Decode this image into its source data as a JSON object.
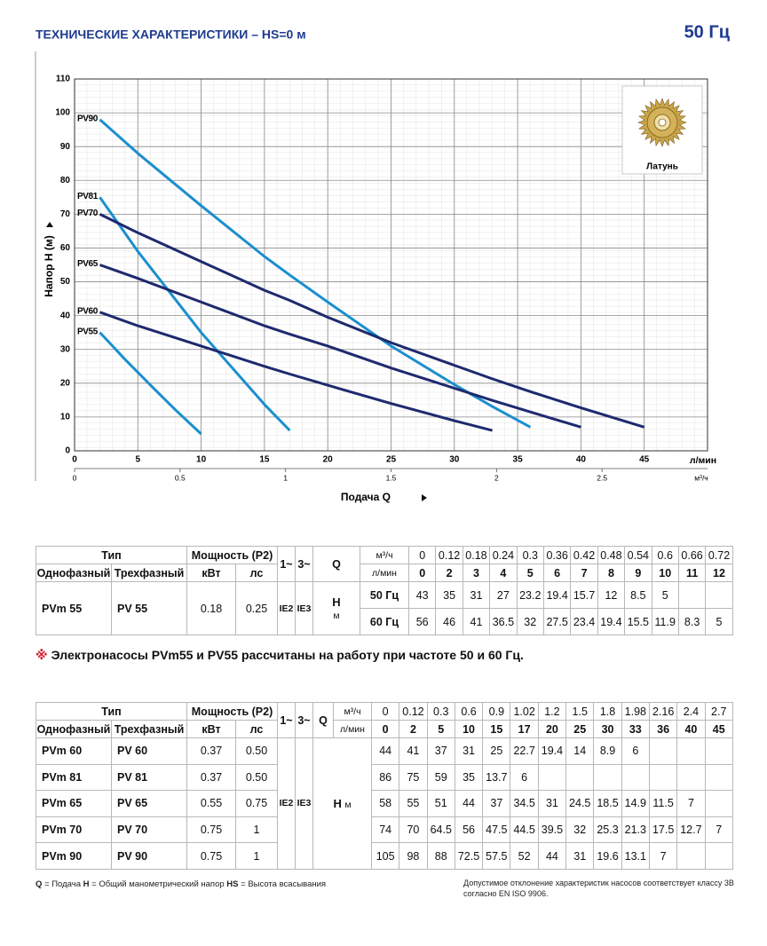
{
  "header": {
    "title": "ТЕХНИЧЕСКИЕ ХАРАКТЕРИСТИКИ – HS=0 м",
    "frequency": "50 Гц"
  },
  "chart_data": {
    "type": "line",
    "y_label": "Напор H (м)",
    "x_label": "Подача Q",
    "x_unit": "л/мин",
    "x2_unit": "м³/ч",
    "image_label": "Латунь",
    "xlim": [
      0,
      50
    ],
    "xticks": [
      0,
      5,
      10,
      15,
      20,
      25,
      30,
      35,
      40,
      45
    ],
    "x2lim": [
      0,
      3
    ],
    "x2ticks": [
      0,
      0.5,
      1,
      1.5,
      2,
      2.5
    ],
    "ylim": [
      0,
      110
    ],
    "yticks": [
      0,
      10,
      20,
      30,
      40,
      50,
      60,
      70,
      80,
      90,
      100,
      110
    ],
    "grid": true,
    "series": [
      {
        "name": "PV90",
        "color": "#1b8fcf",
        "x": [
          2,
          5,
          10,
          15,
          17,
          20,
          25,
          30,
          33,
          36
        ],
        "values": [
          98,
          88,
          72.5,
          57.5,
          52,
          44,
          31,
          19.6,
          13.1,
          7
        ]
      },
      {
        "name": "PV81",
        "color": "#1b8fcf",
        "x": [
          2,
          5,
          10,
          15,
          17
        ],
        "values": [
          75,
          59,
          35,
          13.7,
          6
        ]
      },
      {
        "name": "PV70",
        "color": "#1e2a6e",
        "x": [
          2,
          5,
          10,
          15,
          17,
          20,
          25,
          30,
          33,
          36,
          40,
          45
        ],
        "values": [
          70,
          64.5,
          56,
          47.5,
          44.5,
          39.5,
          32,
          25.3,
          21.3,
          17.5,
          12.7,
          7
        ]
      },
      {
        "name": "PV65",
        "color": "#1e2a6e",
        "x": [
          2,
          5,
          10,
          15,
          17,
          20,
          25,
          30,
          33,
          36,
          40
        ],
        "values": [
          55,
          51,
          44,
          37,
          34.5,
          31,
          24.5,
          18.5,
          14.9,
          11.5,
          7
        ]
      },
      {
        "name": "PV60",
        "color": "#1e2a6e",
        "x": [
          2,
          5,
          10,
          15,
          17,
          20,
          25,
          30,
          33
        ],
        "values": [
          41,
          37,
          31,
          25,
          22.7,
          19.4,
          14,
          8.9,
          6
        ]
      },
      {
        "name": "PV55",
        "color": "#1b8fcf",
        "x": [
          2,
          3,
          4,
          5,
          6,
          7,
          8,
          9,
          10
        ],
        "values": [
          35,
          31,
          27,
          23.2,
          19.4,
          15.7,
          12,
          8.5,
          5
        ]
      }
    ]
  },
  "table1": {
    "head": {
      "type": "Тип",
      "power": "Мощность (P2)",
      "single": "Однофазный",
      "three": "Трехфазный",
      "kw": "кВт",
      "hp": "лс",
      "phase1": "1~",
      "phase3": "3~",
      "q": "Q",
      "unit_m3h": "м³/ч",
      "unit_lmin": "л/мин"
    },
    "ie2": "IE2",
    "ie3": "IE3",
    "h": "H",
    "h_unit": "м",
    "q_m3h": [
      0,
      0.12,
      0.18,
      0.24,
      0.3,
      0.36,
      0.42,
      0.48,
      0.54,
      0.6,
      0.66,
      0.72
    ],
    "q_lmin": [
      0,
      2,
      3,
      4,
      5,
      6,
      7,
      8,
      9,
      10,
      11,
      12
    ],
    "rows": [
      {
        "model_1": "PVm 55",
        "model_3": "PV 55",
        "kw": "0.18",
        "hp": "0.25",
        "freqs": [
          {
            "label": "50 Гц",
            "values": [
              43,
              35,
              31,
              27,
              23.2,
              19.4,
              15.7,
              12,
              8.5,
              5,
              null,
              null
            ]
          },
          {
            "label": "60 Гц",
            "values": [
              56,
              46,
              41,
              36.5,
              32,
              27.5,
              23.4,
              19.4,
              15.5,
              11.9,
              8.3,
              5
            ]
          }
        ]
      }
    ]
  },
  "note": {
    "mark": "※",
    "text": "Электронасосы PVm55 и PV55 рассчитаны на работу при частоте 50 и 60 Гц."
  },
  "table2": {
    "head": {
      "type": "Тип",
      "power": "Мощность (P2)",
      "single": "Однофазный",
      "three": "Трехфазный",
      "kw": "кВт",
      "hp": "лс",
      "phase1": "1~",
      "phase3": "3~",
      "q": "Q",
      "unit_m3h": "м³/ч",
      "unit_lmin": "л/мин"
    },
    "ie2": "IE2",
    "ie3": "IE3",
    "h": "H",
    "h_unit": "м",
    "q_m3h": [
      0,
      0.12,
      0.3,
      0.6,
      0.9,
      1.02,
      1.2,
      1.5,
      1.8,
      1.98,
      2.16,
      2.4,
      2.7
    ],
    "q_lmin": [
      0,
      2,
      5,
      10,
      15,
      17,
      20,
      25,
      30,
      33,
      36,
      40,
      45
    ],
    "rows": [
      {
        "model_1": "PVm 60",
        "model_3": "PV 60",
        "kw": "0.37",
        "hp": "0.50",
        "values": [
          44,
          41,
          37,
          31,
          25,
          22.7,
          19.4,
          14,
          8.9,
          6,
          null,
          null,
          null
        ]
      },
      {
        "model_1": "PVm 81",
        "model_3": "PV 81",
        "kw": "0.37",
        "hp": "0.50",
        "values": [
          86,
          75,
          59,
          35,
          13.7,
          6,
          null,
          null,
          null,
          null,
          null,
          null,
          null
        ]
      },
      {
        "model_1": "PVm 65",
        "model_3": "PV 65",
        "kw": "0.55",
        "hp": "0.75",
        "values": [
          58,
          55,
          51,
          44,
          37,
          34.5,
          31,
          24.5,
          18.5,
          14.9,
          11.5,
          7,
          null
        ]
      },
      {
        "model_1": "PVm 70",
        "model_3": "PV 70",
        "kw": "0.75",
        "hp": "1",
        "values": [
          74,
          70,
          64.5,
          56,
          47.5,
          44.5,
          39.5,
          32,
          25.3,
          21.3,
          17.5,
          12.7,
          7
        ]
      },
      {
        "model_1": "PVm 90",
        "model_3": "PV 90",
        "kw": "0.75",
        "hp": "1",
        "values": [
          105,
          98,
          88,
          72.5,
          57.5,
          52,
          44,
          31,
          19.6,
          13.1,
          7,
          null,
          null
        ]
      }
    ]
  },
  "footer": {
    "legend": [
      {
        "key": "Q",
        "text": "= Подача"
      },
      {
        "key": "H",
        "text": "= Общий манометрический напор"
      },
      {
        "key": "HS",
        "text": "= Высота всасывания"
      }
    ],
    "tolerance": "Допустимое отклонение характеристик насосов соответствует классу 3B согласно EN ISO 9906."
  }
}
